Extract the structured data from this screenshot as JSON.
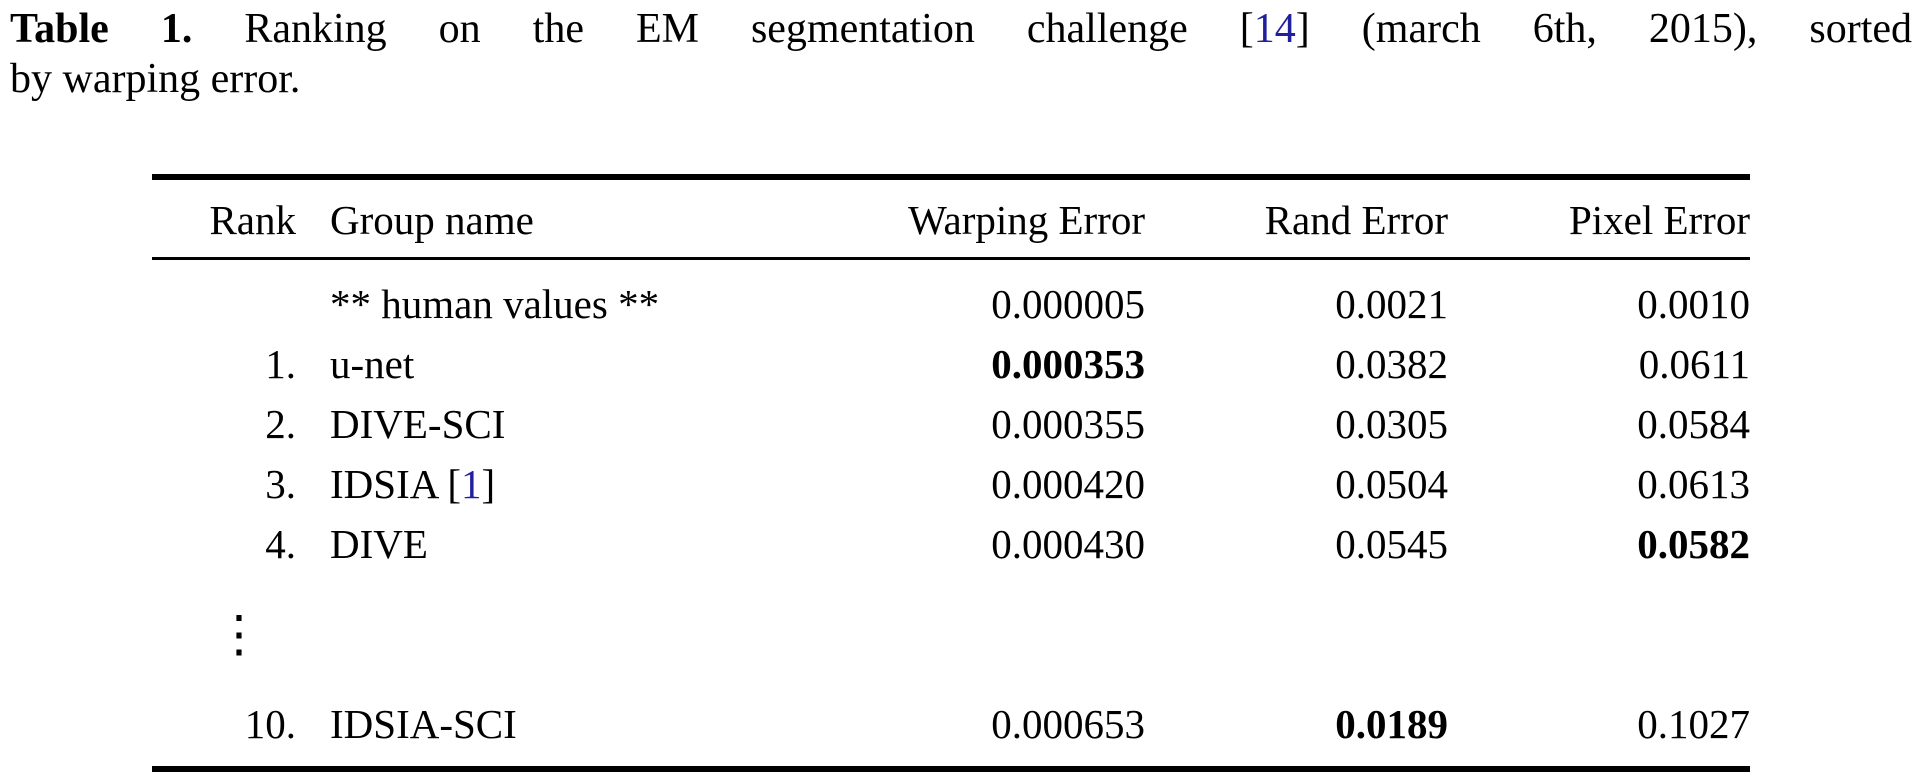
{
  "caption": {
    "line1": {
      "label": "Table 1.",
      "before": "Ranking on the EM segmentation challenge",
      "bracket_open": "[",
      "cite": "14",
      "bracket_close": "]",
      "after": "(march 6th, 2015), sorted"
    },
    "line2": "by warping error."
  },
  "table": {
    "headers": [
      "Rank",
      "Group name",
      "Warping Error",
      "Rand Error",
      "Pixel Error"
    ],
    "cite_bracket_open": "[",
    "cite_bracket_close": "]",
    "dots_glyph": "⋮",
    "rows": [
      {
        "rank": "",
        "group": "** human values **",
        "warping": "0.000005",
        "rand": "0.0021",
        "pixel": "0.0010"
      },
      {
        "rank": "1.",
        "group": "u-net",
        "warping": "0.000353",
        "warping_bold": true,
        "rand": "0.0382",
        "pixel": "0.0611"
      },
      {
        "rank": "2.",
        "group": "DIVE-SCI",
        "warping": "0.000355",
        "rand": "0.0305",
        "pixel": "0.0584"
      },
      {
        "rank": "3.",
        "group": "IDSIA",
        "group_cite": "1",
        "warping": "0.000420",
        "rand": "0.0504",
        "pixel": "0.0613"
      },
      {
        "rank": "4.",
        "group": "DIVE",
        "warping": "0.000430",
        "rand": "0.0545",
        "pixel": "0.0582",
        "pixel_bold": true
      },
      {
        "type": "dots"
      },
      {
        "rank": "10.",
        "group": "IDSIA-SCI",
        "warping": "0.000653",
        "rand": "0.0189",
        "rand_bold": true,
        "pixel": "0.1027"
      }
    ]
  }
}
